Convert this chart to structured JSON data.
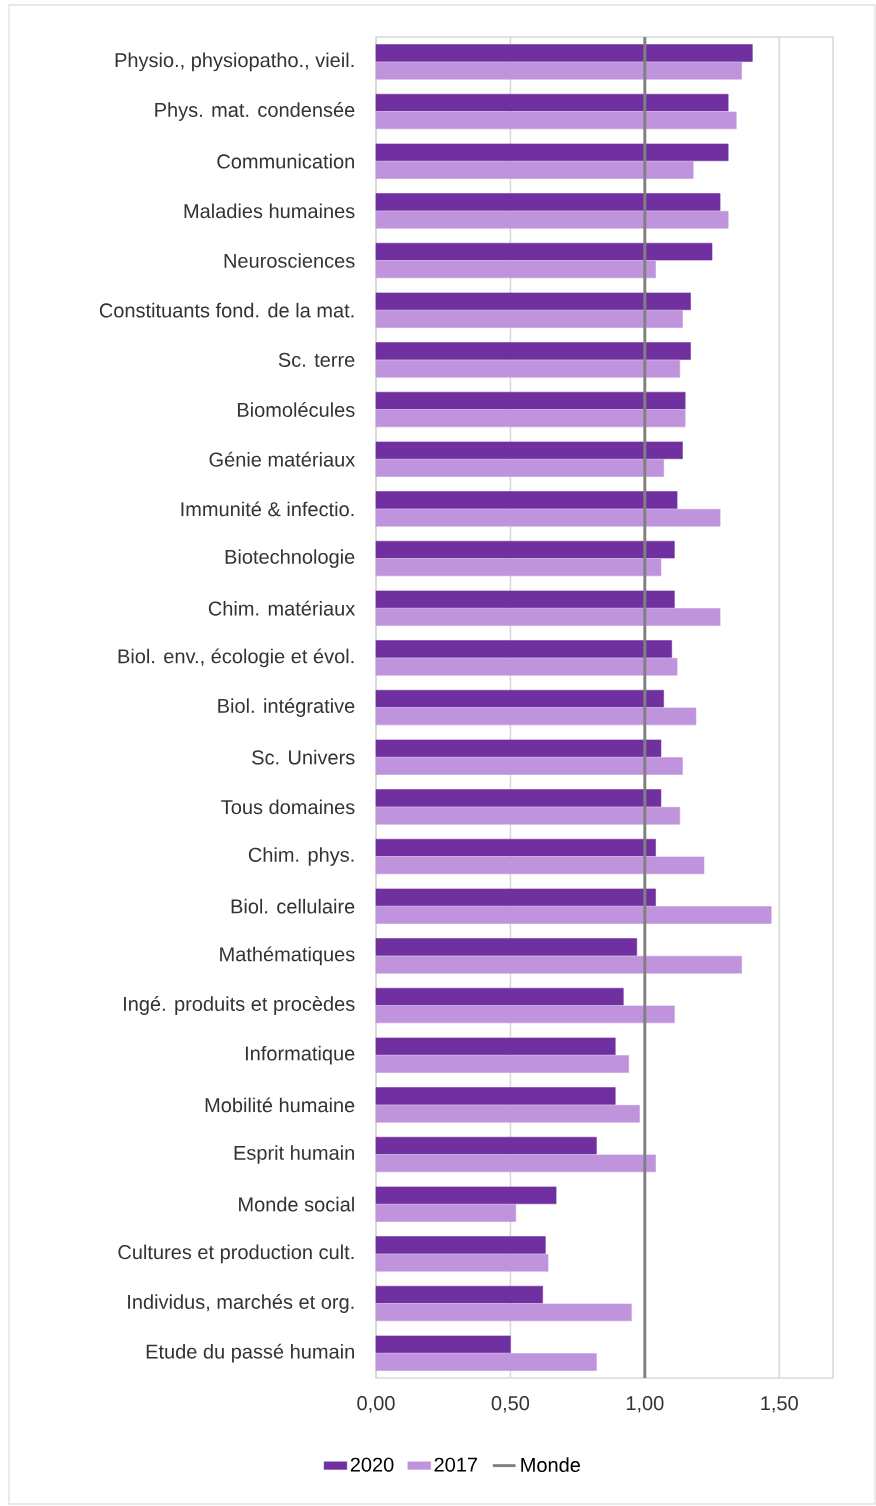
{
  "chart_data": {
    "type": "bar",
    "orientation": "horizontal",
    "categories": [
      "Physio., physiopatho., vieil.",
      "Phys. mat. condensée",
      "Communication",
      "Maladies humaines",
      "Neurosciences",
      "Constituants fond. de la mat.",
      "Sc. terre",
      "Biomolécules",
      "Génie  matériaux",
      "Immunité & infectio.",
      "Biotechnologie",
      "Chim. matériaux",
      "Biol. env., écologie et évol.",
      "Biol. intégrative",
      "Sc. Univers",
      "Tous domaines",
      "Chim. phys.",
      "Biol. cellulaire",
      "Mathématiques",
      "Ingé. produits et  procèdes",
      "Informatique",
      "Mobilité humaine",
      "Esprit humain",
      "Monde social",
      "Cultures et production cult.",
      "Individus, marchés et org.",
      "Etude du passé humain"
    ],
    "series": [
      {
        "name": "2020",
        "color": "#7030a0",
        "values": [
          1.4,
          1.31,
          1.31,
          1.28,
          1.25,
          1.17,
          1.17,
          1.15,
          1.14,
          1.12,
          1.11,
          1.11,
          1.1,
          1.07,
          1.06,
          1.06,
          1.04,
          1.04,
          0.97,
          0.92,
          0.89,
          0.89,
          0.82,
          0.67,
          0.63,
          0.62,
          0.5
        ]
      },
      {
        "name": "2017",
        "color": "#bf94dc",
        "values": [
          1.36,
          1.34,
          1.18,
          1.31,
          1.04,
          1.14,
          1.13,
          1.15,
          1.07,
          1.28,
          1.06,
          1.28,
          1.12,
          1.19,
          1.14,
          1.13,
          1.22,
          1.47,
          1.36,
          1.11,
          0.94,
          0.98,
          1.04,
          0.52,
          0.64,
          0.95,
          0.82
        ]
      }
    ],
    "xlim": [
      0,
      1.7
    ],
    "xticks": [
      {
        "value": 0,
        "label": "0,00"
      },
      {
        "value": 0.5,
        "label": "0,50"
      },
      {
        "value": 1,
        "label": "1,00"
      },
      {
        "value": 1.5,
        "label": "1,50"
      }
    ],
    "ref_lines": [
      {
        "axis": "x",
        "value": 1,
        "label": "Monde",
        "color": "#808080"
      }
    ],
    "grid": "x",
    "legend": "bottom"
  }
}
